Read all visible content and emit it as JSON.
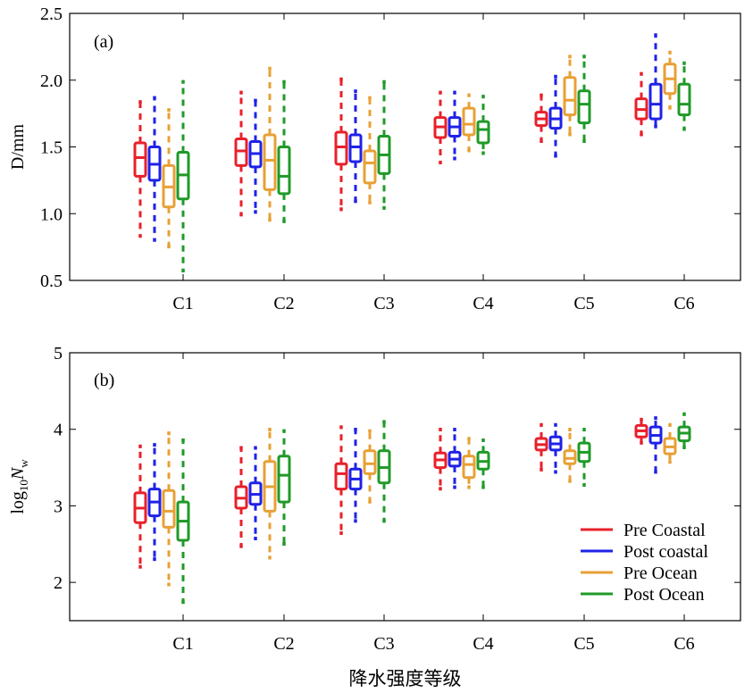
{
  "colors": {
    "Pre Coastal": "#e8202a",
    "Post coastal": "#1f22e6",
    "Pre Ocean": "#e8a035",
    "Post Ocean": "#1f9a28"
  },
  "chart_data": [
    {
      "type": "box",
      "panel_label": "(a)",
      "ylabel": "D/mm",
      "ylim": [
        0.5,
        2.5
      ],
      "yticks": [
        0.5,
        1.0,
        1.5,
        2.0,
        2.5
      ],
      "ytick_labels": [
        "0.5",
        "1.0",
        "1.5",
        "2.0",
        "2.5"
      ],
      "categories": [
        "C1",
        "C2",
        "C3",
        "C4",
        "C5",
        "C6"
      ],
      "series": [
        {
          "name": "Pre Coastal",
          "boxes": [
            {
              "min": 0.82,
              "q1": 1.28,
              "med": 1.42,
              "q3": 1.53,
              "max": 1.85
            },
            {
              "min": 0.98,
              "q1": 1.36,
              "med": 1.47,
              "q3": 1.56,
              "max": 1.92
            },
            {
              "min": 1.02,
              "q1": 1.37,
              "med": 1.5,
              "q3": 1.61,
              "max": 2.02
            },
            {
              "min": 1.37,
              "q1": 1.57,
              "med": 1.65,
              "q3": 1.72,
              "max": 1.92
            },
            {
              "min": 1.53,
              "q1": 1.66,
              "med": 1.71,
              "q3": 1.76,
              "max": 1.9
            },
            {
              "min": 1.58,
              "q1": 1.71,
              "med": 1.78,
              "q3": 1.86,
              "max": 2.06
            }
          ]
        },
        {
          "name": "Post coastal",
          "boxes": [
            {
              "min": 0.79,
              "q1": 1.25,
              "med": 1.37,
              "q3": 1.5,
              "max": 1.88
            },
            {
              "min": 1.0,
              "q1": 1.35,
              "med": 1.45,
              "q3": 1.54,
              "max": 1.86
            },
            {
              "min": 1.08,
              "q1": 1.39,
              "med": 1.5,
              "q3": 1.59,
              "max": 1.93
            },
            {
              "min": 1.4,
              "q1": 1.58,
              "med": 1.65,
              "q3": 1.72,
              "max": 1.92
            },
            {
              "min": 1.42,
              "q1": 1.64,
              "med": 1.71,
              "q3": 1.79,
              "max": 2.04
            },
            {
              "min": 1.64,
              "q1": 1.71,
              "med": 1.82,
              "q3": 1.97,
              "max": 2.35
            }
          ]
        },
        {
          "name": "Pre Ocean",
          "boxes": [
            {
              "min": 0.74,
              "q1": 1.05,
              "med": 1.2,
              "q3": 1.36,
              "max": 1.79
            },
            {
              "min": 0.94,
              "q1": 1.18,
              "med": 1.4,
              "q3": 1.59,
              "max": 2.1
            },
            {
              "min": 1.07,
              "q1": 1.23,
              "med": 1.38,
              "q3": 1.47,
              "max": 1.88
            },
            {
              "min": 1.46,
              "q1": 1.59,
              "med": 1.67,
              "q3": 1.79,
              "max": 1.9
            },
            {
              "min": 1.58,
              "q1": 1.74,
              "med": 1.85,
              "q3": 2.02,
              "max": 2.19
            },
            {
              "min": 1.78,
              "q1": 1.9,
              "med": 2.01,
              "q3": 2.12,
              "max": 2.22
            }
          ]
        },
        {
          "name": "Post Ocean",
          "boxes": [
            {
              "min": 0.56,
              "q1": 1.11,
              "med": 1.29,
              "q3": 1.46,
              "max": 2.0
            },
            {
              "min": 0.93,
              "q1": 1.15,
              "med": 1.28,
              "q3": 1.5,
              "max": 2.0
            },
            {
              "min": 1.03,
              "q1": 1.3,
              "med": 1.44,
              "q3": 1.58,
              "max": 2.0
            },
            {
              "min": 1.44,
              "q1": 1.53,
              "med": 1.63,
              "q3": 1.69,
              "max": 1.89
            },
            {
              "min": 1.53,
              "q1": 1.68,
              "med": 1.82,
              "q3": 1.92,
              "max": 2.19
            },
            {
              "min": 1.62,
              "q1": 1.74,
              "med": 1.82,
              "q3": 1.97,
              "max": 2.14
            }
          ]
        }
      ]
    },
    {
      "type": "box",
      "panel_label": "(b)",
      "ylabel_prefix": "log",
      "ylabel_subscript": "10",
      "ylabel_var": "N",
      "ylabel_var_subscript": "w",
      "ylim": [
        1.5,
        5
      ],
      "yticks": [
        2,
        3,
        4,
        5
      ],
      "ytick_labels": [
        "2",
        "3",
        "4",
        "5"
      ],
      "categories": [
        "C1",
        "C2",
        "C3",
        "C4",
        "C5",
        "C6"
      ],
      "xlabel": "降水强度等级",
      "legend": {
        "placement": "bottom-right",
        "entries": [
          "Pre Coastal",
          "Post coastal",
          "Pre Ocean",
          "Post Ocean"
        ]
      },
      "series": [
        {
          "name": "Pre Coastal",
          "boxes": [
            {
              "min": 2.18,
              "q1": 2.78,
              "med": 2.97,
              "q3": 3.17,
              "max": 3.8
            },
            {
              "min": 2.45,
              "q1": 2.97,
              "med": 3.1,
              "q3": 3.25,
              "max": 3.78
            },
            {
              "min": 2.62,
              "q1": 3.22,
              "med": 3.42,
              "q3": 3.55,
              "max": 4.05
            },
            {
              "min": 3.2,
              "q1": 3.5,
              "med": 3.6,
              "q3": 3.69,
              "max": 4.02
            },
            {
              "min": 3.45,
              "q1": 3.73,
              "med": 3.8,
              "q3": 3.88,
              "max": 4.08
            },
            {
              "min": 3.8,
              "q1": 3.9,
              "med": 3.98,
              "q3": 4.05,
              "max": 4.15
            }
          ]
        },
        {
          "name": "Post coastal",
          "boxes": [
            {
              "min": 2.28,
              "q1": 2.87,
              "med": 3.05,
              "q3": 3.22,
              "max": 3.82
            },
            {
              "min": 2.55,
              "q1": 3.02,
              "med": 3.15,
              "q3": 3.3,
              "max": 3.78
            },
            {
              "min": 2.78,
              "q1": 3.22,
              "med": 3.35,
              "q3": 3.48,
              "max": 4.02
            },
            {
              "min": 3.22,
              "q1": 3.52,
              "med": 3.61,
              "q3": 3.7,
              "max": 4.02
            },
            {
              "min": 3.42,
              "q1": 3.73,
              "med": 3.81,
              "q3": 3.9,
              "max": 4.08
            },
            {
              "min": 3.42,
              "q1": 3.82,
              "med": 3.92,
              "q3": 4.03,
              "max": 4.17
            }
          ]
        },
        {
          "name": "Pre Ocean",
          "boxes": [
            {
              "min": 1.95,
              "q1": 2.72,
              "med": 2.93,
              "q3": 3.2,
              "max": 3.97
            },
            {
              "min": 2.3,
              "q1": 2.93,
              "med": 3.25,
              "q3": 3.58,
              "max": 4.02
            },
            {
              "min": 3.03,
              "q1": 3.42,
              "med": 3.55,
              "q3": 3.72,
              "max": 4.0
            },
            {
              "min": 3.22,
              "q1": 3.37,
              "med": 3.54,
              "q3": 3.65,
              "max": 3.9
            },
            {
              "min": 3.3,
              "q1": 3.55,
              "med": 3.62,
              "q3": 3.72,
              "max": 4.02
            },
            {
              "min": 3.55,
              "q1": 3.68,
              "med": 3.77,
              "q3": 3.88,
              "max": 4.08
            }
          ]
        },
        {
          "name": "Post Ocean",
          "boxes": [
            {
              "min": 1.72,
              "q1": 2.55,
              "med": 2.8,
              "q3": 3.05,
              "max": 3.88
            },
            {
              "min": 2.48,
              "q1": 3.05,
              "med": 3.4,
              "q3": 3.65,
              "max": 4.0
            },
            {
              "min": 2.78,
              "q1": 3.3,
              "med": 3.5,
              "q3": 3.72,
              "max": 4.12
            },
            {
              "min": 3.22,
              "q1": 3.48,
              "med": 3.58,
              "q3": 3.7,
              "max": 3.88
            },
            {
              "min": 3.25,
              "q1": 3.58,
              "med": 3.7,
              "q3": 3.82,
              "max": 4.02
            },
            {
              "min": 3.74,
              "q1": 3.85,
              "med": 3.95,
              "q3": 4.03,
              "max": 4.22
            }
          ]
        }
      ]
    }
  ]
}
